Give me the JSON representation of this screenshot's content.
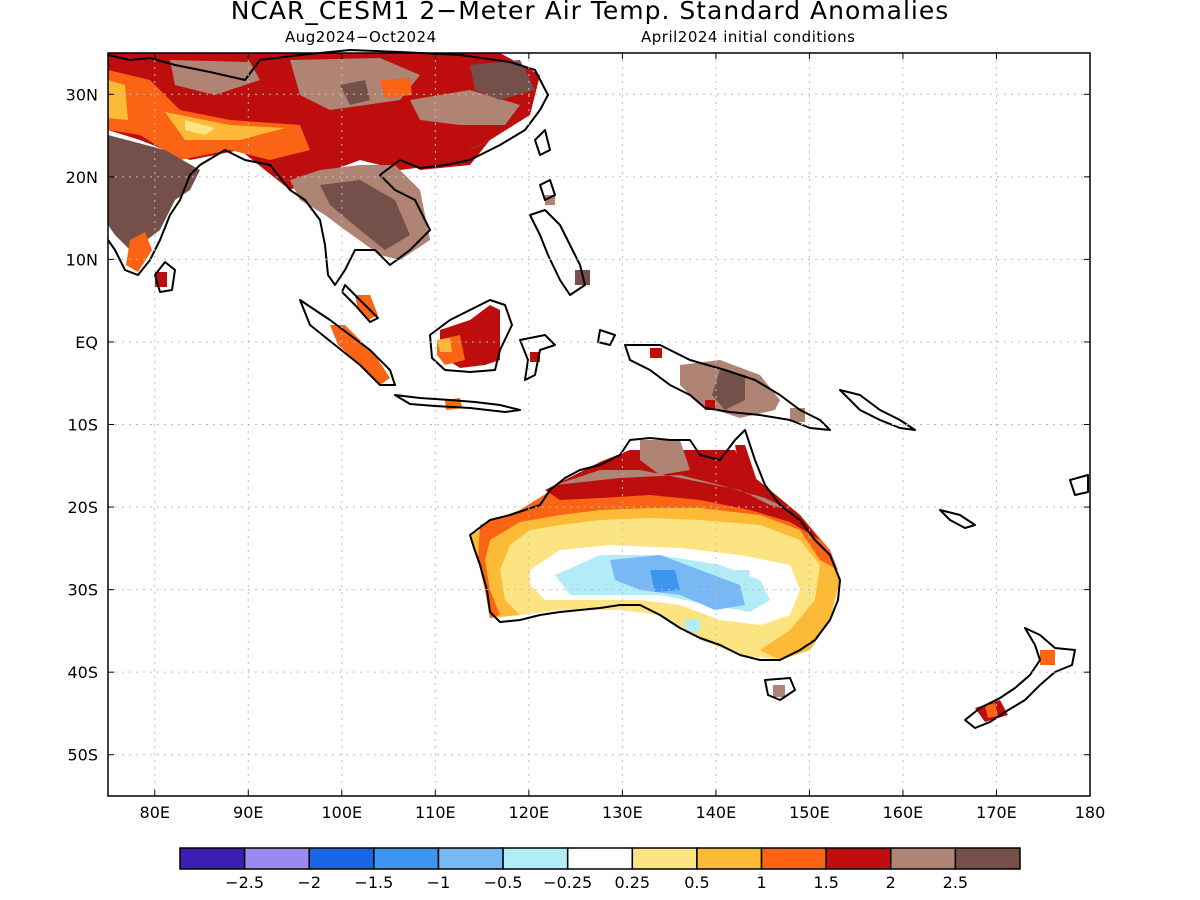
{
  "title": "NCAR_CESM1 2−Meter Air Temp. Standard Anomalies",
  "subtitle_left": "Aug2024−Oct2024",
  "subtitle_right": "April2024 initial conditions",
  "map": {
    "lon_range": [
      75,
      180
    ],
    "lat_range": [
      -55,
      35
    ],
    "lat_ticks": [
      {
        "lat": 30,
        "label": "30N"
      },
      {
        "lat": 20,
        "label": "20N"
      },
      {
        "lat": 10,
        "label": "10N"
      },
      {
        "lat": 0,
        "label": "EQ"
      },
      {
        "lat": -10,
        "label": "10S"
      },
      {
        "lat": -20,
        "label": "20S"
      },
      {
        "lat": -30,
        "label": "30S"
      },
      {
        "lat": -40,
        "label": "40S"
      },
      {
        "lat": -50,
        "label": "50S"
      }
    ],
    "lon_ticks": [
      {
        "lon": 80,
        "label": "80E"
      },
      {
        "lon": 90,
        "label": "90E"
      },
      {
        "lon": 100,
        "label": "100E"
      },
      {
        "lon": 110,
        "label": "110E"
      },
      {
        "lon": 120,
        "label": "120E"
      },
      {
        "lon": 130,
        "label": "130E"
      },
      {
        "lon": 140,
        "label": "140E"
      },
      {
        "lon": 150,
        "label": "150E"
      },
      {
        "lon": 160,
        "label": "160E"
      },
      {
        "lon": 170,
        "label": "170E"
      },
      {
        "lon": 180,
        "label": "180"
      }
    ],
    "gridlines": true
  },
  "colorbar": {
    "colors": [
      "#3a1fb0",
      "#9c88f2",
      "#1a64e6",
      "#3c96f0",
      "#78b9f5",
      "#b2ecf7",
      "#ffffff",
      "#fde482",
      "#fcba36",
      "#fa6414",
      "#bd0d0d",
      "#b08474",
      "#75504a"
    ],
    "labels": [
      "−2.5",
      "−2",
      "−1.5",
      "−1",
      "−0.5",
      "−0.25",
      "0.25",
      "0.5",
      "1",
      "1.5",
      "2",
      "2.5"
    ]
  }
}
